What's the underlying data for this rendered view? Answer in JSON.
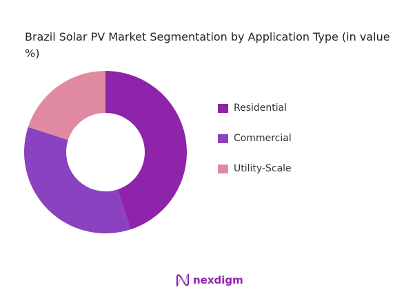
{
  "chart_data": {
    "type": "pie",
    "variant": "donut",
    "title": "Brazil Solar PV Market Segmentation by Application Type (in value %)",
    "categories": [
      "Residential",
      "Commercial",
      "Utility-Scale"
    ],
    "values": [
      45,
      35,
      20
    ],
    "colors": [
      "#8e24aa",
      "#8a42c0",
      "#df8aa0"
    ],
    "legend": "right"
  },
  "brand": {
    "name": "nexdigm"
  }
}
